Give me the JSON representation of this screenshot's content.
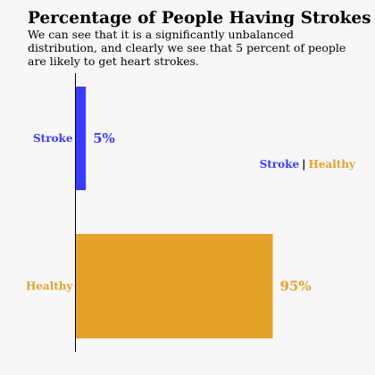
{
  "chart_data": {
    "type": "bar",
    "orientation": "horizontal",
    "title": "Percentage of People Having Strokes",
    "subtitle": "We can see that it is a significantly unbalanced distribution, and clearly we see that 5 percent of people are likely to get heart strokes.",
    "categories": [
      "Stroke",
      "Healthy"
    ],
    "values": [
      5,
      95
    ],
    "value_labels": [
      "5%",
      "95%"
    ],
    "colors": [
      "#3a3cfb",
      "#e5a22b"
    ],
    "xlim": [
      0,
      145
    ],
    "xlabel": "",
    "ylabel": "",
    "grid": false,
    "legend": {
      "placement": "right",
      "separator": "|",
      "entries": [
        {
          "label": "Stroke",
          "color": "#3a3cfb"
        },
        {
          "label": "Healthy",
          "color": "#e5a22b"
        }
      ]
    }
  }
}
